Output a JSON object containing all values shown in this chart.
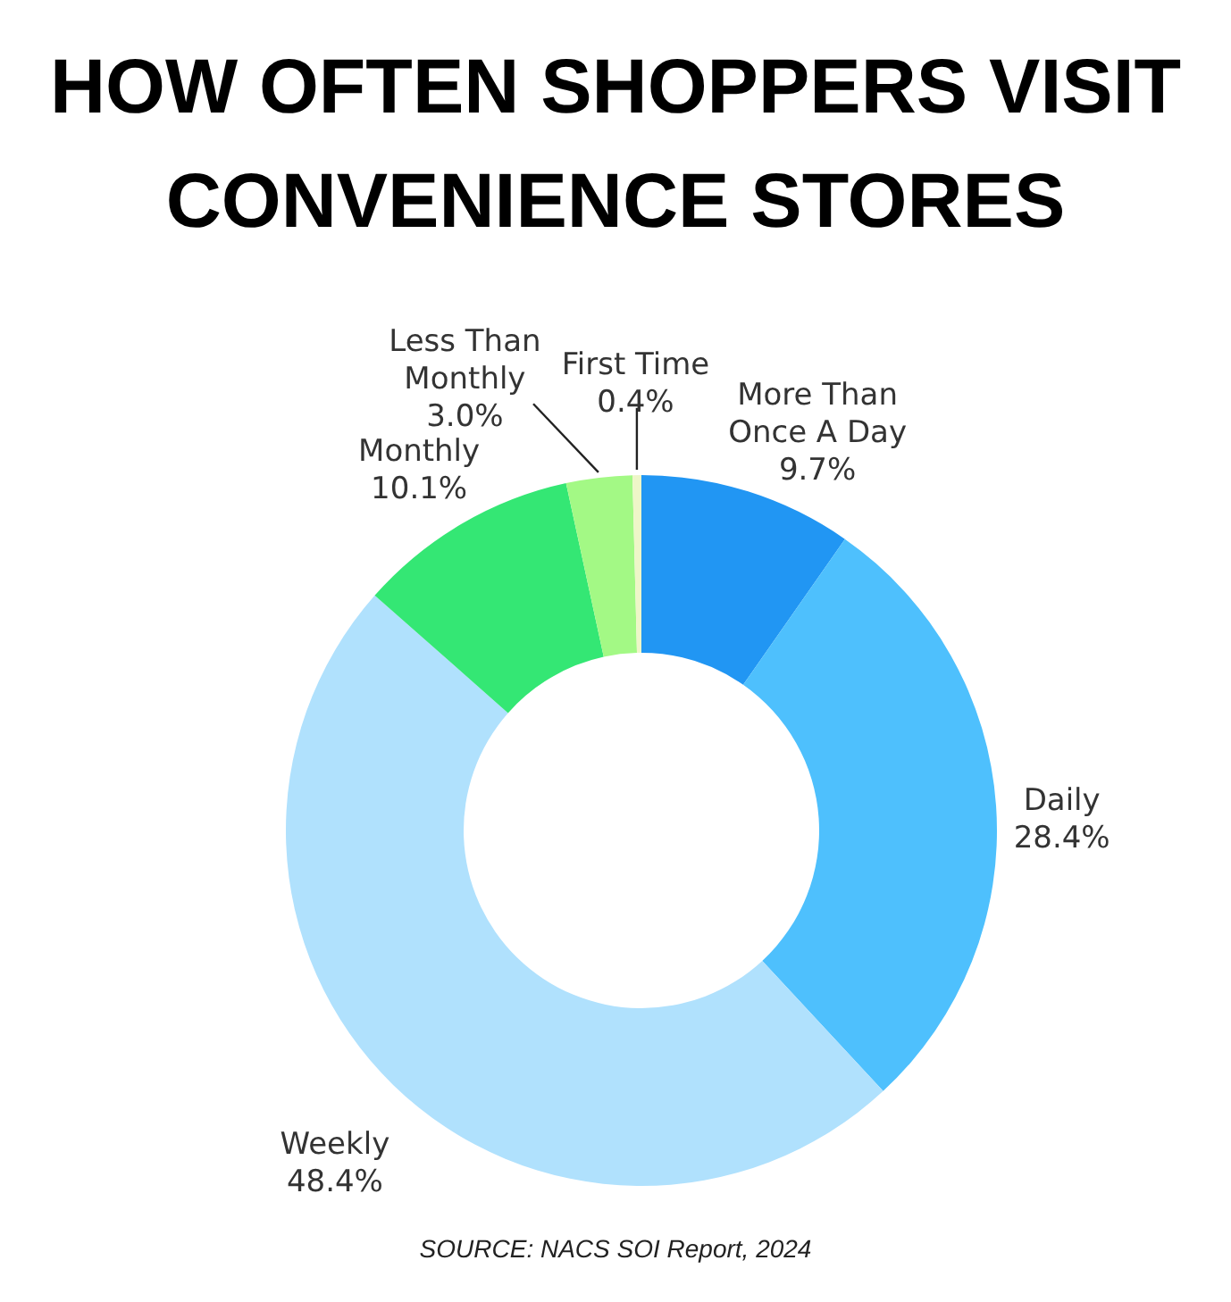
{
  "chart_data": {
    "type": "donut",
    "title": "HOW OFTEN SHOPPERS VISIT CONVENIENCE STORES",
    "categories": [
      "More Than Once A Day",
      "Daily",
      "Weekly",
      "Monthly",
      "Less Than Monthly",
      "First Time"
    ],
    "values": [
      9.7,
      28.4,
      48.4,
      10.1,
      3.0,
      0.4
    ],
    "colors": [
      "#2196f3",
      "#4ec0fd",
      "#b0e1fd",
      "#34e774",
      "#a3f985",
      "#eef6c8"
    ],
    "value_labels": [
      "9.7%",
      "28.4%",
      "48.4%",
      "10.1%",
      "3.0%",
      "0.4%"
    ],
    "annotations": [
      "SOURCE: NACS SOI Report, 2024"
    ]
  }
}
